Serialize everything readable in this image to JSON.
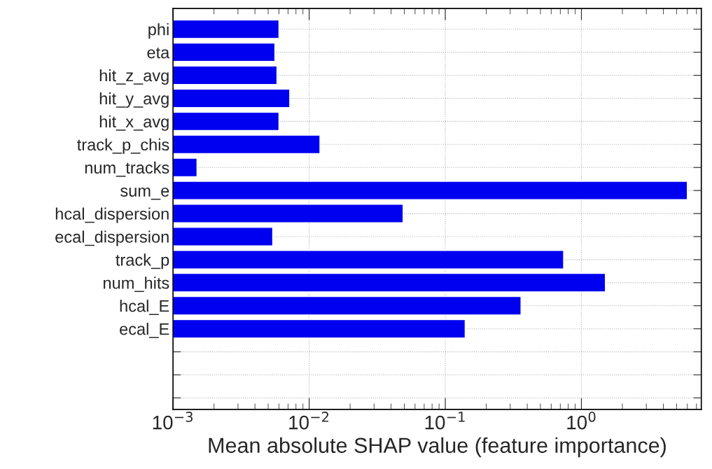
{
  "chart_data": {
    "type": "bar",
    "orientation": "horizontal",
    "xlabel": "Mean absolute SHAP value (feature importance)",
    "categories": [
      "phi",
      "eta",
      "hit_z_avg",
      "hit_y_avg",
      "hit_x_avg",
      "track_p_chis",
      "num_tracks",
      "sum_e",
      "hcal_dispersion",
      "ecal_dispersion",
      "track_p",
      "num_hits",
      "hcal_E",
      "ecal_E",
      null,
      null,
      null
    ],
    "values": [
      0.006,
      0.0056,
      0.0058,
      0.0072,
      0.006,
      0.012,
      0.0015,
      6.0,
      0.049,
      0.0054,
      0.74,
      1.5,
      0.36,
      0.14,
      null,
      null,
      null
    ],
    "color": "#0000f0",
    "log": "x",
    "xlim": [
      0.001,
      7.6
    ],
    "xticks": [
      {
        "value": 0.001,
        "label": "10$^{−3}$"
      },
      {
        "value": 0.01,
        "label": "10$^{−2}$"
      },
      {
        "value": 0.1,
        "label": "10$^{−1}$"
      },
      {
        "value": 1,
        "label": "10$^{0}$"
      }
    ],
    "grid": true
  }
}
